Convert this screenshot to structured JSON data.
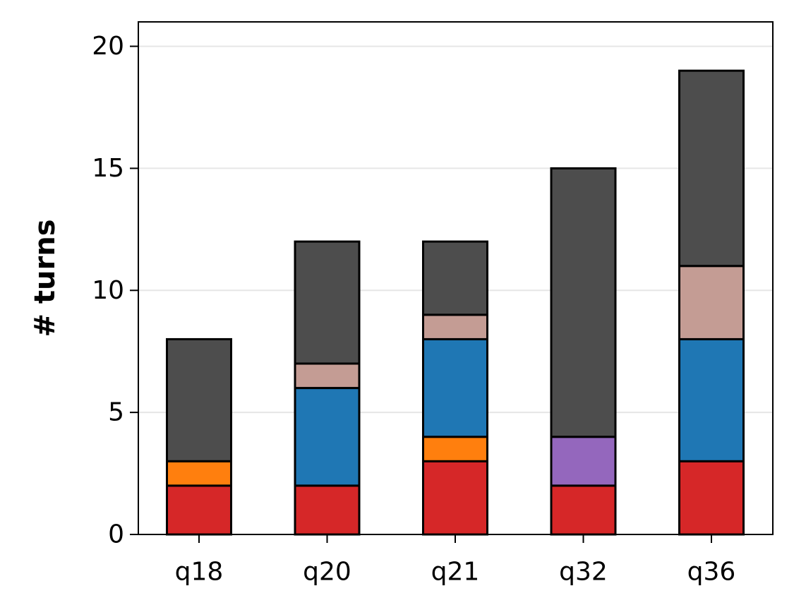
{
  "chart_data": {
    "type": "bar",
    "stacked": true,
    "title": "",
    "xlabel": "",
    "ylabel": "# turns",
    "categories": [
      "q18",
      "q20",
      "q21",
      "q32",
      "q36"
    ],
    "ylim": [
      0,
      21
    ],
    "yticks": [
      0,
      5,
      10,
      15,
      20
    ],
    "grid": "horizontal",
    "legend": "none",
    "series": [
      {
        "color": "#d62728",
        "values": [
          2,
          2,
          3,
          2,
          3
        ]
      },
      {
        "color": "#ff7f0e",
        "values": [
          1,
          0,
          1,
          0,
          0
        ]
      },
      {
        "color": "#9467bd",
        "values": [
          0,
          0,
          0,
          2,
          0
        ]
      },
      {
        "color": "#1f77b4",
        "values": [
          0,
          4,
          4,
          0,
          5
        ]
      },
      {
        "color": "#c49c94",
        "values": [
          0,
          1,
          1,
          0,
          3
        ]
      },
      {
        "color": "#4d4d4d",
        "values": [
          5,
          5,
          3,
          11,
          8
        ]
      }
    ]
  }
}
